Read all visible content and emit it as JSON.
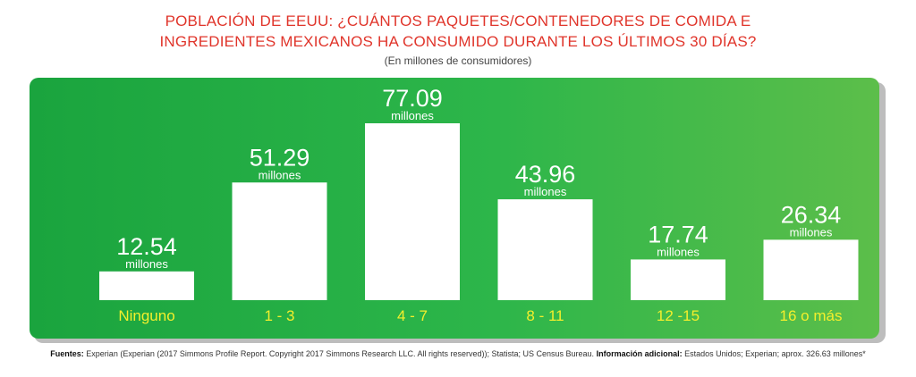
{
  "header": {
    "title_line1": "POBLACIÓN DE EEUU: ¿CUÁNTOS PAQUETES/CONTENEDORES DE COMIDA E",
    "title_line2": "INGREDIENTES MEXICANOS HA CONSUMIDO DURANTE LOS ÚLTIMOS 30 DÍAS?",
    "subtitle": "(En millones de consumidores)"
  },
  "chart_data": {
    "type": "bar",
    "categories": [
      "Ninguno",
      "1 - 3",
      "4 - 7",
      "8 - 11",
      "12 -15",
      "16 o más"
    ],
    "values": [
      12.54,
      51.29,
      77.09,
      43.96,
      17.74,
      26.34
    ],
    "value_labels": [
      "12.54",
      "51.29",
      "77.09",
      "43.96",
      "17.74",
      "26.34"
    ],
    "unit_label": "millones",
    "title": "POBLACIÓN DE EEUU: ¿CUÁNTOS PAQUETES/CONTENEDORES DE COMIDA E INGREDIENTES MEXICANOS HA CONSUMIDO DURANTE LOS ÚLTIMOS 30 DÍAS?",
    "subtitle": "(En millones de consumidores)",
    "xlabel": "",
    "ylabel": "",
    "ylim": [
      0,
      77.09
    ],
    "grid": false,
    "legend": "none"
  },
  "sources": {
    "label_sources": "Fuentes:",
    "text_sources": "Experian (Experian (2017 Simmons Profile Report. Copyright 2017 Simmons Research LLC. All rights reserved)); Statista; US Census Bureau.",
    "label_info": "Información adicional:",
    "text_info": "Estados Unidos; Experian; aprox. 326.63 millones*"
  },
  "colors": {
    "title": "#e0352b",
    "panel_start": "#1aa43e",
    "panel_end": "#5cbe4a",
    "bar": "#ffffff",
    "category_label": "#f3ef2c",
    "value_label": "#ffffff"
  }
}
